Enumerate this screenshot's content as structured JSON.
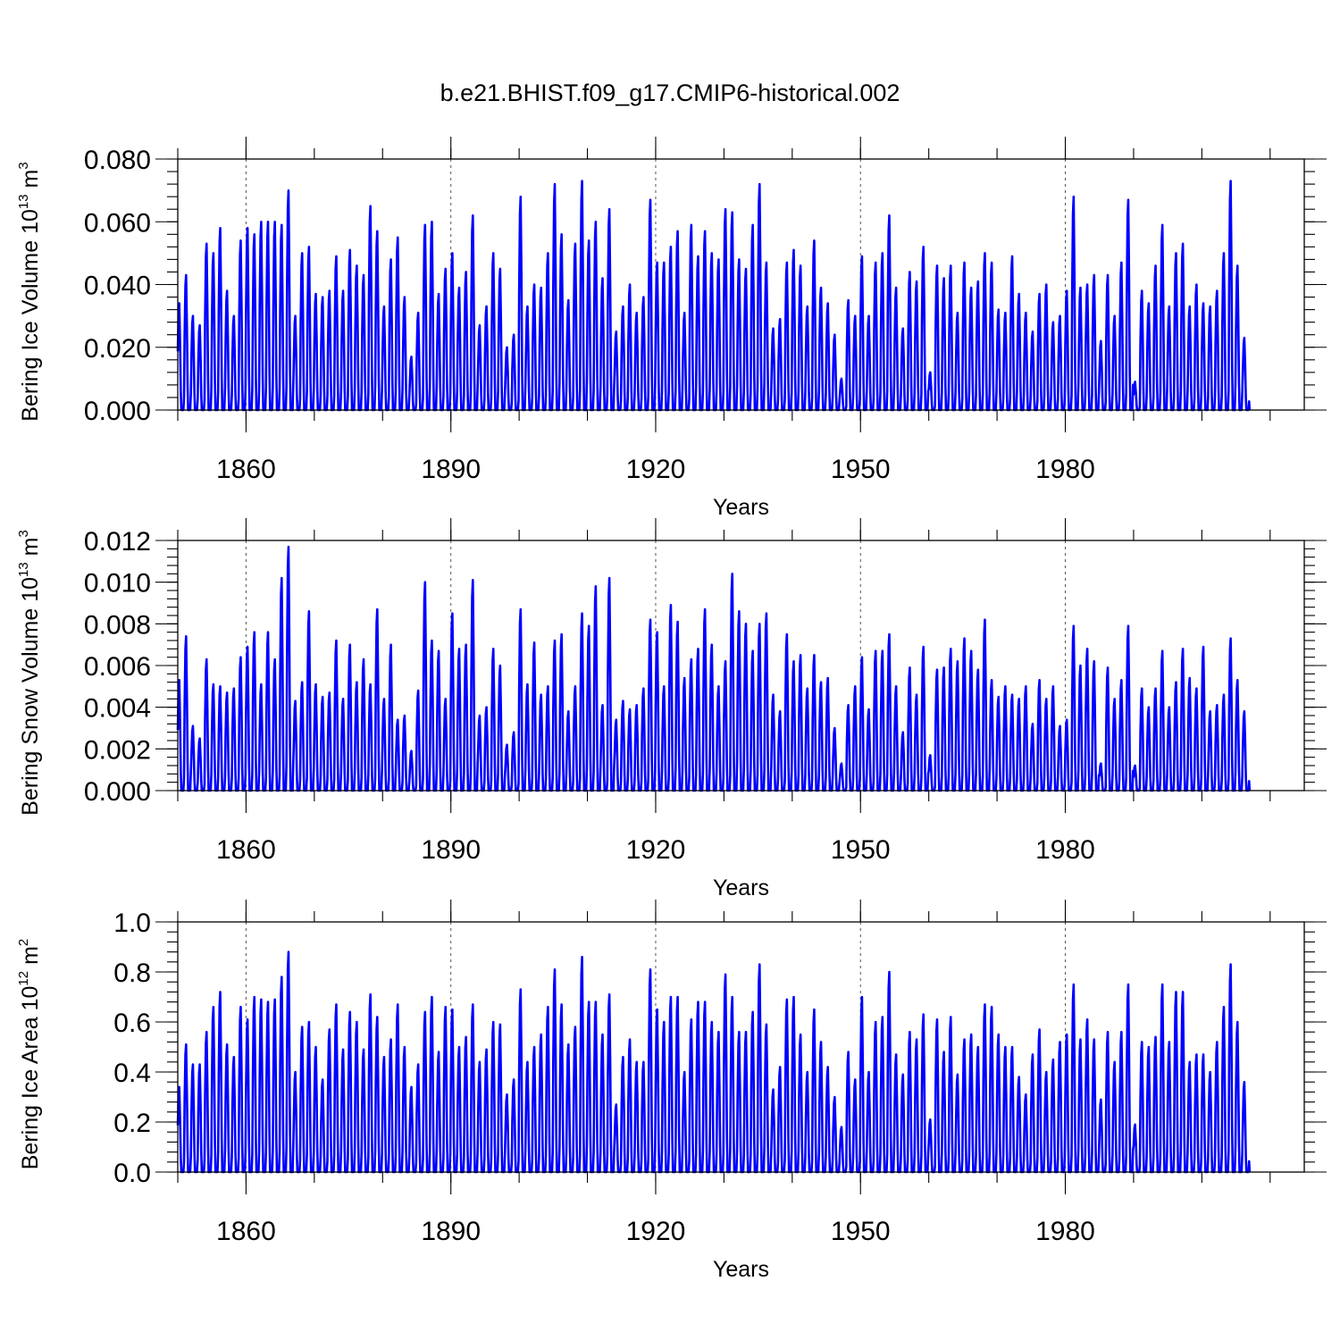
{
  "title": "b.e21.BHIST.f09_g17.CMIP6-historical.002",
  "chart_data": [
    {
      "type": "line",
      "ylabel": {
        "text": "Bering Ice Volume 10",
        "exp": "13",
        "unit": " m",
        "unit_exp": "3"
      },
      "xlabel": "Years",
      "xlim": [
        1850,
        2015
      ],
      "ylim": [
        0,
        0.08
      ],
      "ytick_values": [
        0,
        0.02,
        0.04,
        0.06,
        0.08
      ],
      "ytick_labels": [
        "0.000",
        "0.020",
        "0.040",
        "0.060",
        "0.080"
      ],
      "xtick_values": [
        1860,
        1890,
        1920,
        1950,
        1980
      ],
      "xtick_labels": [
        "1860",
        "1890",
        "1920",
        "1950",
        "1980"
      ],
      "grid": "vertical-dashed-at-major-x-ticks",
      "series": [
        {
          "color": "#0000ff",
          "x": "annual seasonal-cycle peaks, one per year 1850-2014",
          "annual_max": [
            0.034,
            0.043,
            0.03,
            0.027,
            0.053,
            0.05,
            0.058,
            0.038,
            0.03,
            0.054,
            0.058,
            0.056,
            0.06,
            0.06,
            0.06,
            0.059,
            0.07,
            0.03,
            0.05,
            0.052,
            0.037,
            0.036,
            0.038,
            0.049,
            0.038,
            0.051,
            0.046,
            0.043,
            0.065,
            0.057,
            0.033,
            0.048,
            0.055,
            0.036,
            0.017,
            0.031,
            0.059,
            0.06,
            0.037,
            0.045,
            0.05,
            0.039,
            0.044,
            0.062,
            0.027,
            0.033,
            0.05,
            0.045,
            0.02,
            0.024,
            0.068,
            0.033,
            0.04,
            0.039,
            0.05,
            0.072,
            0.056,
            0.035,
            0.053,
            0.073,
            0.054,
            0.06,
            0.042,
            0.064,
            0.025,
            0.033,
            0.04,
            0.031,
            0.036,
            0.067,
            0.047,
            0.047,
            0.052,
            0.057,
            0.031,
            0.059,
            0.049,
            0.057,
            0.05,
            0.048,
            0.064,
            0.063,
            0.048,
            0.045,
            0.059,
            0.072,
            0.047,
            0.026,
            0.029,
            0.047,
            0.051,
            0.046,
            0.033,
            0.054,
            0.039,
            0.034,
            0.024,
            0.01,
            0.035,
            0.03,
            0.049,
            0.03,
            0.047,
            0.05,
            0.062,
            0.039,
            0.026,
            0.044,
            0.041,
            0.052,
            0.012,
            0.046,
            0.042,
            0.046,
            0.031,
            0.047,
            0.039,
            0.041,
            0.05,
            0.047,
            0.032,
            0.031,
            0.049,
            0.037,
            0.031,
            0.025,
            0.037,
            0.04,
            0.028,
            0.03,
            0.038,
            0.068,
            0.039,
            0.04,
            0.043,
            0.022,
            0.043,
            0.03,
            0.047,
            0.067,
            0.009,
            0.038,
            0.034,
            0.046,
            0.059,
            0.033,
            0.05,
            0.053,
            0.033,
            0.04,
            0.034,
            0.033,
            0.038,
            0.05,
            0.073,
            0.046,
            0.023
          ]
        }
      ]
    },
    {
      "type": "line",
      "ylabel": {
        "text": "Bering Snow Volume 10",
        "exp": "13",
        "unit": " m",
        "unit_exp": "3"
      },
      "xlabel": "Years",
      "xlim": [
        1850,
        2015
      ],
      "ylim": [
        0,
        0.012
      ],
      "ytick_values": [
        0,
        0.002,
        0.004,
        0.006,
        0.008,
        0.01,
        0.012
      ],
      "ytick_labels": [
        "0.000",
        "0.002",
        "0.004",
        "0.006",
        "0.008",
        "0.010",
        "0.012"
      ],
      "xtick_values": [
        1860,
        1890,
        1920,
        1950,
        1980
      ],
      "xtick_labels": [
        "1860",
        "1890",
        "1920",
        "1950",
        "1980"
      ],
      "grid": "vertical-dashed-at-major-x-ticks",
      "series": [
        {
          "color": "#0000ff",
          "x": "annual seasonal-cycle peaks, one per year 1850-2014",
          "annual_max": [
            0.0053,
            0.0074,
            0.0031,
            0.0025,
            0.0063,
            0.0051,
            0.005,
            0.0047,
            0.0049,
            0.0064,
            0.0069,
            0.0076,
            0.0051,
            0.0076,
            0.0063,
            0.0102,
            0.0117,
            0.0043,
            0.0052,
            0.0086,
            0.0051,
            0.0045,
            0.0047,
            0.0072,
            0.0044,
            0.007,
            0.0052,
            0.0063,
            0.0051,
            0.0087,
            0.0044,
            0.007,
            0.0034,
            0.0036,
            0.0019,
            0.0048,
            0.01,
            0.0072,
            0.0067,
            0.0044,
            0.0085,
            0.0068,
            0.007,
            0.0101,
            0.0036,
            0.004,
            0.0068,
            0.006,
            0.0022,
            0.0028,
            0.0087,
            0.0051,
            0.0071,
            0.0046,
            0.005,
            0.0072,
            0.0075,
            0.0038,
            0.005,
            0.0085,
            0.0079,
            0.0098,
            0.0041,
            0.0102,
            0.0034,
            0.0043,
            0.0039,
            0.0041,
            0.0049,
            0.0082,
            0.0076,
            0.005,
            0.0089,
            0.0081,
            0.0054,
            0.0063,
            0.0068,
            0.0087,
            0.007,
            0.005,
            0.0062,
            0.0104,
            0.0086,
            0.008,
            0.0067,
            0.008,
            0.0085,
            0.0046,
            0.0038,
            0.0075,
            0.0062,
            0.0065,
            0.0049,
            0.0065,
            0.0052,
            0.0054,
            0.003,
            0.0013,
            0.0041,
            0.005,
            0.0064,
            0.0039,
            0.0067,
            0.0067,
            0.0075,
            0.005,
            0.0028,
            0.0059,
            0.0046,
            0.0069,
            0.0017,
            0.0058,
            0.0059,
            0.0068,
            0.0062,
            0.0073,
            0.0067,
            0.0058,
            0.0082,
            0.0053,
            0.0045,
            0.005,
            0.0046,
            0.0044,
            0.005,
            0.0032,
            0.0053,
            0.0044,
            0.005,
            0.0031,
            0.0034,
            0.0079,
            0.006,
            0.0068,
            0.0062,
            0.0013,
            0.0059,
            0.0044,
            0.0053,
            0.0079,
            0.0012,
            0.0049,
            0.004,
            0.0049,
            0.0067,
            0.004,
            0.0052,
            0.0068,
            0.0054,
            0.0049,
            0.0069,
            0.0038,
            0.0041,
            0.0046,
            0.0073,
            0.0053,
            0.0038
          ]
        }
      ]
    },
    {
      "type": "line",
      "ylabel": {
        "text": "Bering Ice Area 10",
        "exp": "12",
        "unit": " m",
        "unit_exp": "2"
      },
      "xlabel": "Years",
      "xlim": [
        1850,
        2015
      ],
      "ylim": [
        0,
        1.0
      ],
      "ytick_values": [
        0,
        0.2,
        0.4,
        0.6,
        0.8,
        1.0
      ],
      "ytick_labels": [
        "0.0",
        "0.2",
        "0.4",
        "0.6",
        "0.8",
        "1.0"
      ],
      "xtick_values": [
        1860,
        1890,
        1920,
        1950,
        1980
      ],
      "xtick_labels": [
        "1860",
        "1890",
        "1920",
        "1950",
        "1980"
      ],
      "grid": "vertical-dashed-at-major-x-ticks",
      "series": [
        {
          "color": "#0000ff",
          "x": "annual seasonal-cycle peaks, one per year 1850-2014",
          "annual_max": [
            0.34,
            0.51,
            0.43,
            0.43,
            0.56,
            0.66,
            0.72,
            0.51,
            0.46,
            0.66,
            0.61,
            0.7,
            0.69,
            0.68,
            0.69,
            0.78,
            0.88,
            0.4,
            0.58,
            0.6,
            0.5,
            0.37,
            0.57,
            0.67,
            0.49,
            0.64,
            0.6,
            0.49,
            0.71,
            0.62,
            0.46,
            0.53,
            0.67,
            0.5,
            0.34,
            0.43,
            0.64,
            0.7,
            0.48,
            0.66,
            0.65,
            0.5,
            0.54,
            0.67,
            0.44,
            0.49,
            0.6,
            0.59,
            0.31,
            0.37,
            0.73,
            0.44,
            0.5,
            0.55,
            0.66,
            0.81,
            0.67,
            0.51,
            0.58,
            0.86,
            0.68,
            0.68,
            0.55,
            0.71,
            0.27,
            0.46,
            0.53,
            0.44,
            0.44,
            0.81,
            0.65,
            0.6,
            0.7,
            0.7,
            0.4,
            0.61,
            0.68,
            0.68,
            0.6,
            0.56,
            0.79,
            0.7,
            0.56,
            0.56,
            0.64,
            0.83,
            0.59,
            0.33,
            0.42,
            0.69,
            0.7,
            0.55,
            0.4,
            0.65,
            0.52,
            0.42,
            0.3,
            0.18,
            0.48,
            0.37,
            0.7,
            0.4,
            0.6,
            0.62,
            0.8,
            0.47,
            0.39,
            0.56,
            0.53,
            0.63,
            0.21,
            0.61,
            0.48,
            0.62,
            0.39,
            0.53,
            0.55,
            0.5,
            0.67,
            0.66,
            0.55,
            0.5,
            0.5,
            0.38,
            0.31,
            0.47,
            0.57,
            0.4,
            0.45,
            0.52,
            0.55,
            0.75,
            0.53,
            0.61,
            0.53,
            0.29,
            0.56,
            0.44,
            0.56,
            0.75,
            0.19,
            0.52,
            0.5,
            0.54,
            0.75,
            0.52,
            0.72,
            0.72,
            0.44,
            0.47,
            0.47,
            0.4,
            0.52,
            0.66,
            0.83,
            0.6,
            0.36
          ]
        }
      ]
    }
  ]
}
